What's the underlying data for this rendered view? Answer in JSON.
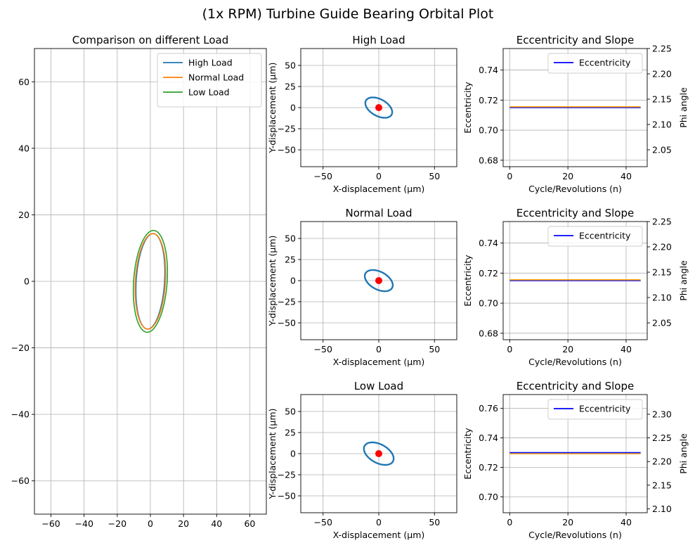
{
  "suptitle": "(1x RPM) Turbine Guide Bearing Orbital Plot",
  "chart_data": [
    {
      "id": "comparison",
      "type": "line",
      "title": "Comparison on different Load",
      "xlabel": "",
      "ylabel": "",
      "xlim": [
        -70,
        70
      ],
      "ylim": [
        -70,
        70
      ],
      "xticks": [
        -60,
        -40,
        -20,
        0,
        20,
        40,
        60
      ],
      "yticks": [
        -60,
        -40,
        -20,
        0,
        20,
        40,
        60
      ],
      "grid": true,
      "legend": "top-right",
      "series": [
        {
          "name": "High Load",
          "color": "#1f77b4",
          "ellipse": {
            "semi_major": 14.5,
            "semi_minor": 8.5,
            "tilt_deg": -10
          }
        },
        {
          "name": "Normal Load",
          "color": "#ff7f0e",
          "ellipse": {
            "semi_major": 14.5,
            "semi_minor": 9.0,
            "tilt_deg": -10
          }
        },
        {
          "name": "Low Load",
          "color": "#2ca02c",
          "ellipse": {
            "semi_major": 15.5,
            "semi_minor": 10.0,
            "tilt_deg": -12
          }
        }
      ]
    },
    {
      "id": "high-orbit",
      "type": "line",
      "title": "High Load",
      "xlabel": "X-displacement (µm)",
      "ylabel": "Y-displacement (µm)",
      "xlim": [
        -70,
        70
      ],
      "ylim": [
        -70,
        70
      ],
      "xticks": [
        -50,
        0,
        50
      ],
      "yticks": [
        -50,
        -25,
        0,
        25,
        50
      ],
      "grid": true,
      "orbit_color": "#1f77b4",
      "ellipse": {
        "semi_major": 14.5,
        "semi_minor": 9.0,
        "tilt_deg": 45
      },
      "center_point": {
        "x": 0,
        "y": 0,
        "color": "#ff0000"
      }
    },
    {
      "id": "normal-orbit",
      "type": "line",
      "title": "Normal Load",
      "xlabel": "X-displacement (µm)",
      "ylabel": "Y-displacement (µm)",
      "xlim": [
        -70,
        70
      ],
      "ylim": [
        -70,
        70
      ],
      "xticks": [
        -50,
        0,
        50
      ],
      "yticks": [
        -50,
        -25,
        0,
        25,
        50
      ],
      "grid": true,
      "orbit_color": "#1f77b4",
      "ellipse": {
        "semi_major": 15.0,
        "semi_minor": 9.5,
        "tilt_deg": 45
      },
      "center_point": {
        "x": 0,
        "y": 0,
        "color": "#ff0000"
      }
    },
    {
      "id": "low-orbit",
      "type": "line",
      "title": "Low Load",
      "xlabel": "X-displacement (µm)",
      "ylabel": "Y-displacement (µm)",
      "xlim": [
        -70,
        70
      ],
      "ylim": [
        -70,
        70
      ],
      "xticks": [
        -50,
        0,
        50
      ],
      "yticks": [
        -50,
        -25,
        0,
        25,
        50
      ],
      "grid": true,
      "orbit_color": "#1f77b4",
      "ellipse": {
        "semi_major": 16.0,
        "semi_minor": 10.0,
        "tilt_deg": 45
      },
      "center_point": {
        "x": 0,
        "y": 0,
        "color": "#ff0000"
      }
    },
    {
      "id": "ecc-high",
      "type": "line",
      "title": "Eccentricity and Slope",
      "xlabel": "Cycle/Revolutions (n)",
      "ylabel": "Eccentricity",
      "y2label": "Phi angle",
      "xlim": [
        -2.25,
        47.25
      ],
      "ylim": [
        0.6757,
        0.7543
      ],
      "y2lim": [
        2.0167,
        2.25
      ],
      "xticks": [
        0,
        20,
        40
      ],
      "yticks": [
        0.68,
        0.7,
        0.72,
        0.74
      ],
      "y2ticks": [
        2.05,
        2.1,
        2.15,
        2.2,
        2.25
      ],
      "grid": true,
      "legend": "top-right",
      "series": [
        {
          "name": "Eccentricity",
          "axis": "left",
          "color": "#0000ff",
          "x": [
            0,
            45
          ],
          "values": [
            0.715,
            0.715
          ]
        },
        {
          "axis": "right",
          "color": "#ffa500",
          "x": [
            0,
            45
          ],
          "values": [
            2.135,
            2.135
          ]
        }
      ]
    },
    {
      "id": "ecc-normal",
      "type": "line",
      "title": "Eccentricity and Slope",
      "xlabel": "Cycle/Revolutions (n)",
      "ylabel": "Eccentricity",
      "y2label": "Phi angle",
      "xlim": [
        -2.25,
        47.25
      ],
      "ylim": [
        0.6757,
        0.7543
      ],
      "y2lim": [
        2.0167,
        2.25
      ],
      "xticks": [
        0,
        20,
        40
      ],
      "yticks": [
        0.68,
        0.7,
        0.72,
        0.74
      ],
      "y2ticks": [
        2.05,
        2.1,
        2.15,
        2.2,
        2.25
      ],
      "grid": true,
      "legend": "top-right",
      "series": [
        {
          "name": "Eccentricity",
          "axis": "left",
          "color": "#0000ff",
          "x": [
            0,
            45
          ],
          "values": [
            0.715,
            0.715
          ]
        },
        {
          "axis": "right",
          "color": "#ffa500",
          "x": [
            0,
            45
          ],
          "values": [
            2.135,
            2.135
          ]
        }
      ]
    },
    {
      "id": "ecc-low",
      "type": "line",
      "title": "Eccentricity and Slope",
      "xlabel": "Cycle/Revolutions (n)",
      "ylabel": "Eccentricity",
      "y2label": "Phi angle",
      "xlim": [
        -2.25,
        47.25
      ],
      "ylim": [
        0.6892,
        0.7694
      ],
      "y2lim": [
        2.0917,
        2.3417
      ],
      "xticks": [
        0,
        20,
        40
      ],
      "yticks": [
        0.7,
        0.72,
        0.74,
        0.76
      ],
      "y2ticks": [
        2.1,
        2.15,
        2.2,
        2.25,
        2.3
      ],
      "grid": true,
      "legend": "top-right",
      "series": [
        {
          "name": "Eccentricity",
          "axis": "left",
          "color": "#0000ff",
          "x": [
            0,
            45
          ],
          "values": [
            0.73,
            0.73
          ]
        },
        {
          "axis": "right",
          "color": "#ffa500",
          "x": [
            0,
            45
          ],
          "values": [
            2.2165,
            2.2165
          ]
        }
      ]
    }
  ]
}
